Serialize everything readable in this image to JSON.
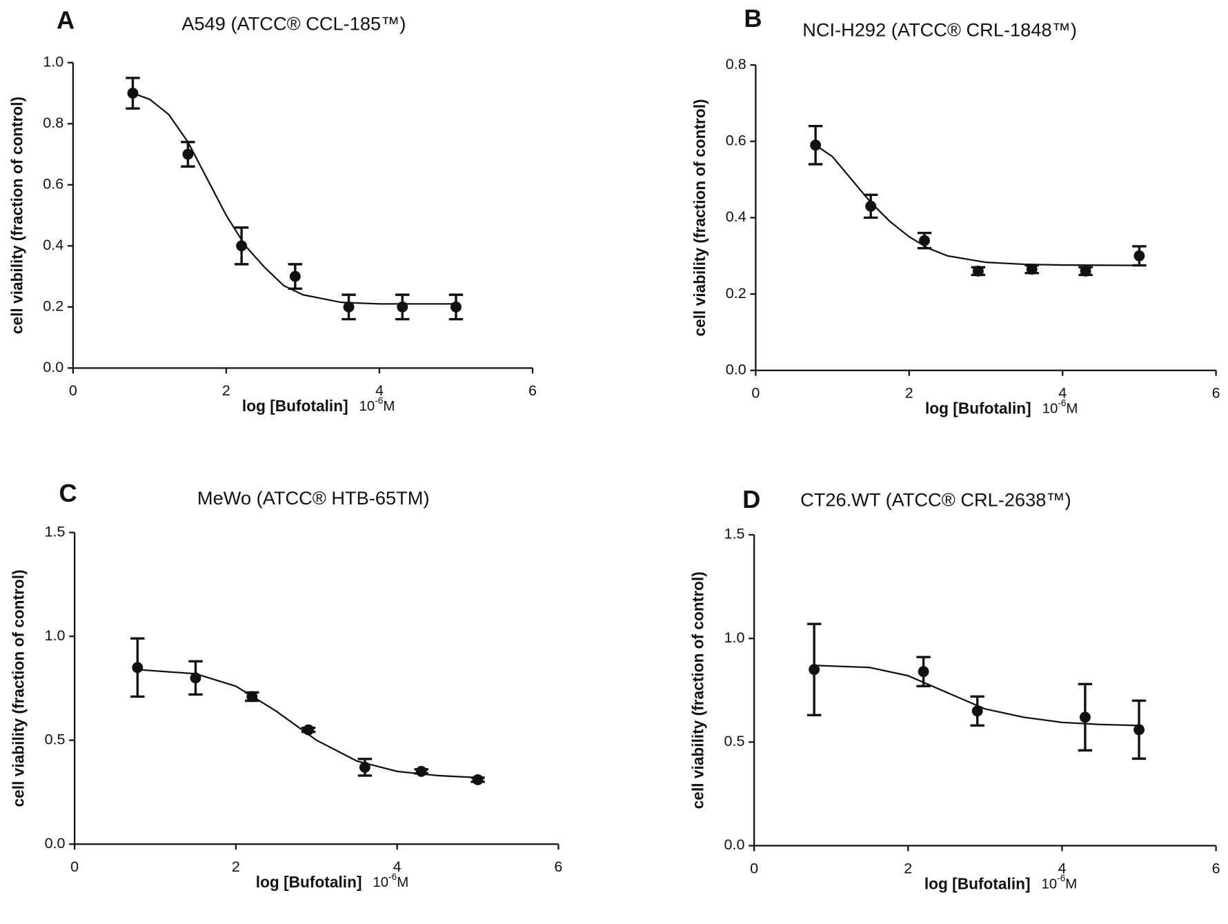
{
  "chart_data": [
    {
      "type": "scatter",
      "label": "A",
      "title": "A549 (ATCC® CCL-185™)",
      "ylabel": "cell viability (fraction of control)",
      "xlabel": "log [Bufotalin]",
      "xunit": {
        "base": "10",
        "exponent": "-6",
        "unit": "M"
      },
      "xlim": [
        0,
        6
      ],
      "xticks": [
        0,
        2,
        4,
        6
      ],
      "ylim": [
        0,
        1
      ],
      "yticks": [
        {
          "value": 0,
          "label": "0.0"
        },
        0.2,
        0.4,
        0.6,
        0.8,
        {
          "value": 1,
          "label": "1.0"
        }
      ],
      "series": [
        {
          "color": "#111111",
          "x": [
            0.78,
            1.5,
            2.2,
            2.9,
            3.6,
            4.3,
            5.0
          ],
          "values": [
            0.9,
            0.7,
            0.4,
            0.3,
            0.2,
            0.2,
            0.2
          ],
          "errors": [
            0.05,
            0.04,
            0.06,
            0.04,
            0.04,
            0.04,
            0.04
          ]
        }
      ],
      "fit": {
        "x": [
          0.78,
          1.0,
          1.25,
          1.5,
          1.75,
          2.0,
          2.25,
          2.5,
          2.75,
          3.0,
          3.5,
          4.0,
          5.0
        ],
        "values": [
          0.9,
          0.88,
          0.83,
          0.74,
          0.62,
          0.5,
          0.4,
          0.33,
          0.27,
          0.24,
          0.215,
          0.21,
          0.21
        ]
      }
    },
    {
      "type": "scatter",
      "label": "B",
      "title": "NCI-H292 (ATCC® CRL-1848™)",
      "ylabel": "cell viability (fraction of control)",
      "xlabel": "log [Bufotalin]",
      "xunit": {
        "base": "10",
        "exponent": "-6",
        "unit": "M"
      },
      "xlim": [
        0,
        6
      ],
      "xticks": [
        0,
        2,
        4,
        6
      ],
      "ylim": [
        0,
        0.8
      ],
      "yticks": [
        {
          "value": 0,
          "label": "0.0"
        },
        0.2,
        0.4,
        0.6,
        0.8
      ],
      "series": [
        {
          "color": "#111111",
          "x": [
            0.78,
            1.5,
            2.2,
            2.9,
            3.6,
            4.3,
            5.0
          ],
          "values": [
            0.59,
            0.43,
            0.34,
            0.26,
            0.265,
            0.26,
            0.3
          ],
          "errors": [
            0.05,
            0.03,
            0.02,
            0.01,
            0.01,
            0.01,
            0.025
          ]
        }
      ],
      "fit": {
        "x": [
          0.78,
          1.0,
          1.25,
          1.5,
          1.75,
          2.0,
          2.25,
          2.5,
          3.0,
          3.5,
          4.0,
          5.0
        ],
        "values": [
          0.59,
          0.56,
          0.5,
          0.44,
          0.39,
          0.35,
          0.32,
          0.3,
          0.283,
          0.278,
          0.276,
          0.275
        ]
      }
    },
    {
      "type": "scatter",
      "label": "C",
      "title": "MeWo (ATCC® HTB-65TM)",
      "ylabel": "cell viability (fraction of control)",
      "xlabel": "log [Bufotalin]",
      "xunit": {
        "base": "10",
        "exponent": "-6",
        "unit": "M"
      },
      "xlim": [
        0,
        6
      ],
      "xticks": [
        0,
        2,
        4,
        6
      ],
      "ylim": [
        0,
        1.5
      ],
      "yticks": [
        {
          "value": 0,
          "label": "0.0"
        },
        0.5,
        {
          "value": 1,
          "label": "1.0"
        },
        1.5
      ],
      "series": [
        {
          "color": "#111111",
          "x": [
            0.78,
            1.5,
            2.2,
            2.9,
            3.6,
            4.3,
            5.0
          ],
          "values": [
            0.85,
            0.8,
            0.71,
            0.55,
            0.37,
            0.35,
            0.31
          ],
          "errors": [
            0.14,
            0.08,
            0.02,
            0.01,
            0.04,
            0.01,
            0.01
          ]
        }
      ],
      "fit": {
        "x": [
          0.78,
          1.5,
          2.0,
          2.5,
          3.0,
          3.5,
          4.0,
          4.5,
          5.0
        ],
        "values": [
          0.84,
          0.82,
          0.76,
          0.64,
          0.5,
          0.4,
          0.35,
          0.33,
          0.32
        ]
      }
    },
    {
      "type": "scatter",
      "label": "D",
      "title": "CT26.WT (ATCC® CRL-2638™)",
      "ylabel": "cell viability (fraction of control)",
      "xlabel": "log [Bufotalin]",
      "xunit": {
        "base": "10",
        "exponent": "-6",
        "unit": "M"
      },
      "xlim": [
        0,
        6
      ],
      "xticks": [
        0,
        2,
        4,
        6
      ],
      "ylim": [
        0,
        1.5
      ],
      "yticks": [
        {
          "value": 0,
          "label": "0.0"
        },
        0.5,
        {
          "value": 1,
          "label": "1.0"
        },
        1.5
      ],
      "series": [
        {
          "color": "#111111",
          "x": [
            0.78,
            2.2,
            2.9,
            4.3,
            5.0
          ],
          "values": [
            0.85,
            0.84,
            0.65,
            0.62,
            0.56
          ],
          "errors": [
            0.22,
            0.07,
            0.07,
            0.16,
            0.14
          ]
        }
      ],
      "fit": {
        "x": [
          0.78,
          1.5,
          2.0,
          2.5,
          3.0,
          3.5,
          4.0,
          4.5,
          5.0
        ],
        "values": [
          0.87,
          0.86,
          0.82,
          0.74,
          0.66,
          0.62,
          0.595,
          0.585,
          0.58
        ]
      }
    }
  ]
}
